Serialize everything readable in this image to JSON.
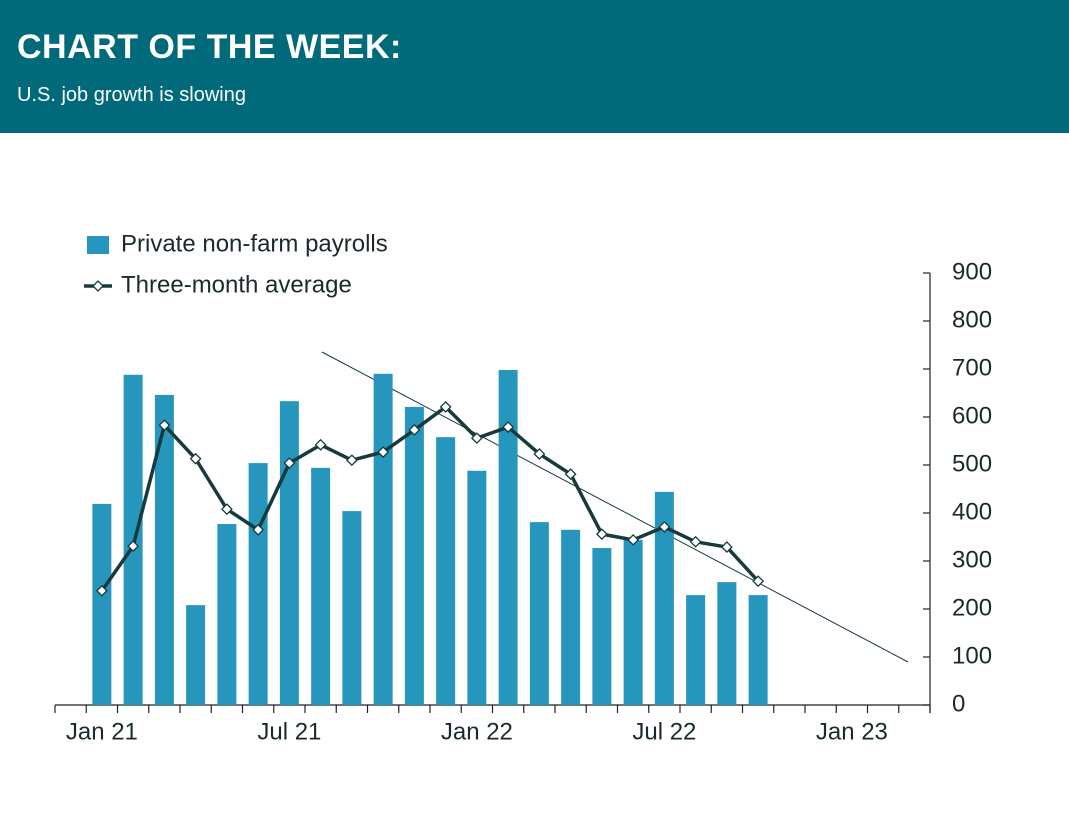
{
  "chart_data": {
    "type": "bar-line",
    "title": "CHART OF THE WEEK:",
    "subtitle": "U.S. job growth is slowing",
    "categories": [
      null,
      "Jan 21",
      null,
      null,
      null,
      null,
      null,
      "Jul 21",
      null,
      null,
      null,
      null,
      null,
      "Jan 22",
      null,
      null,
      null,
      null,
      null,
      "Jul 22",
      null,
      null,
      null,
      null,
      null,
      "Jan 23",
      null,
      null
    ],
    "series": [
      {
        "name": "Private non-farm payrolls",
        "type": "bar",
        "color": "#2796bd",
        "values": [
          null,
          419,
          688,
          646,
          208,
          377,
          504,
          633,
          494,
          404,
          690,
          621,
          558,
          488,
          698,
          381,
          365,
          327,
          344,
          444,
          229,
          256,
          229,
          null,
          null,
          null,
          null,
          null
        ]
      },
      {
        "name": "Three-month average",
        "type": "line",
        "color": "#173a3d",
        "values": [
          null,
          238,
          331,
          583,
          513,
          408,
          365,
          504,
          542,
          510,
          527,
          573,
          621,
          556,
          579,
          523,
          481,
          356,
          344,
          371,
          340,
          329,
          258,
          null,
          null,
          null,
          null,
          null
        ]
      }
    ],
    "ylim": [
      0,
      900
    ],
    "yticks": [
      0,
      100,
      200,
      300,
      400,
      500,
      600,
      700,
      800,
      900
    ],
    "legend": "upper left"
  }
}
